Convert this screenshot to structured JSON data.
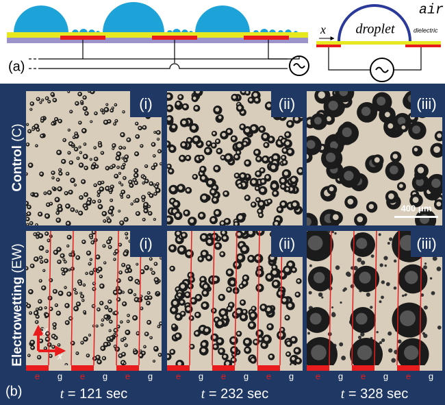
{
  "panel_a": {
    "label": "(a)",
    "symbol_x": "x",
    "droplet": "droplet",
    "air": "air",
    "dielectric": "dielectric"
  },
  "panel_b": {
    "label": "(b)",
    "rows": [
      {
        "title": "Control",
        "suffix": "(C)"
      },
      {
        "title": "Electrowetting",
        "suffix": "(EW)"
      }
    ],
    "columns": [
      "(i)",
      "(ii)",
      "(iii)"
    ],
    "times": [
      {
        "t": "t",
        "rest": "= 121 sec"
      },
      {
        "t": "t",
        "rest": "= 232 sec"
      },
      {
        "t": "t",
        "rest": "= 328 sec"
      }
    ],
    "scale_bar": "400 μm",
    "electrode_labels": [
      "e",
      "g",
      "e",
      "g",
      "e",
      "g"
    ],
    "axes": [
      "y",
      "x"
    ]
  }
}
